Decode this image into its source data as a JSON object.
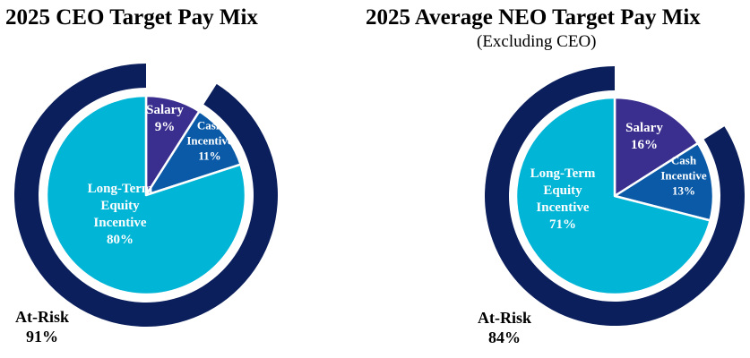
{
  "colors": {
    "salary": "#3a2f8f",
    "cash_incentive": "#0a5aa8",
    "long_term_equity": "#00b5d6",
    "at_risk_ring": "#0b1f5c"
  },
  "chart_data": [
    {
      "type": "pie",
      "title": "2025 CEO Target Pay Mix",
      "subtitle": "",
      "slices": [
        {
          "label_lines": [
            "Salary",
            "9%"
          ],
          "category": "Salary",
          "value": 9
        },
        {
          "label_lines": [
            "Cash",
            "Incentive",
            "11%"
          ],
          "category": "Cash Incentive",
          "value": 11
        },
        {
          "label_lines": [
            "Long-Term",
            "Equity",
            "Incentive",
            "80%"
          ],
          "category": "Long-Term Equity Incentive",
          "value": 80
        }
      ],
      "outer_ring": {
        "label_lines": [
          "At-Risk",
          "91%"
        ],
        "category": "At-Risk",
        "value": 91
      }
    },
    {
      "type": "pie",
      "title": "2025 Average NEO Target Pay Mix",
      "subtitle": "(Excluding CEO)",
      "slices": [
        {
          "label_lines": [
            "Salary",
            "16%"
          ],
          "category": "Salary",
          "value": 16
        },
        {
          "label_lines": [
            "Cash",
            "Incentive",
            "13%"
          ],
          "category": "Cash Incentive",
          "value": 13
        },
        {
          "label_lines": [
            "Long-Term",
            "Equity",
            "Incentive",
            "71%"
          ],
          "category": "Long-Term Equity Incentive",
          "value": 71
        }
      ],
      "outer_ring": {
        "label_lines": [
          "At-Risk",
          "84%"
        ],
        "category": "At-Risk",
        "value": 84
      }
    }
  ]
}
